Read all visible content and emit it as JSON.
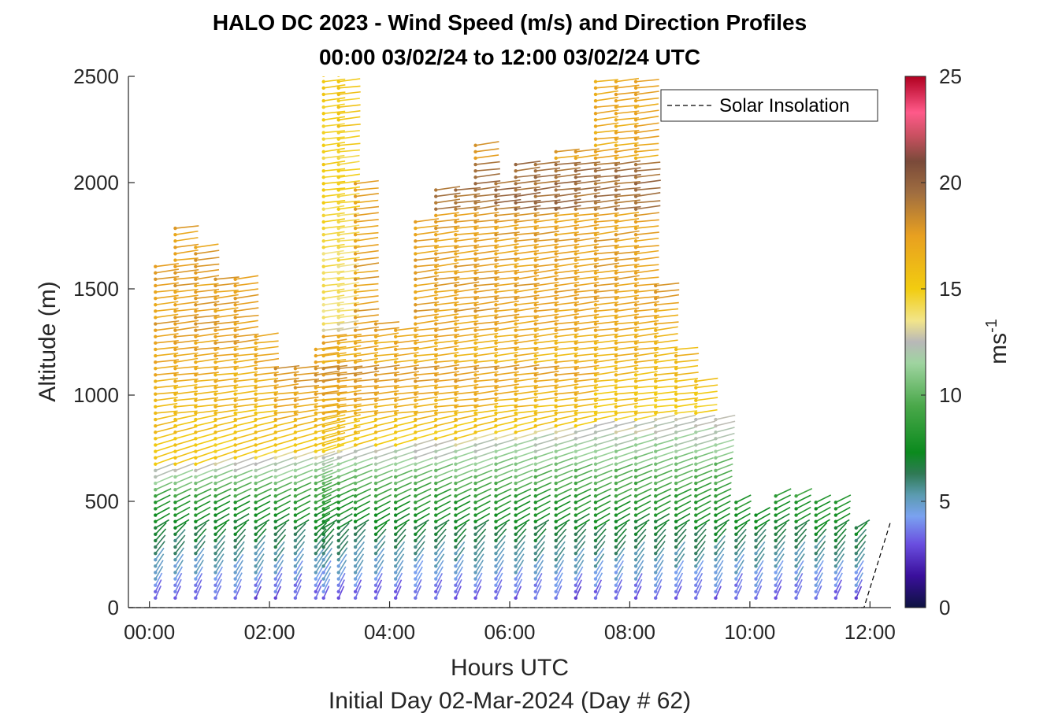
{
  "chart_data": {
    "type": "wind-barb-profile",
    "title_line1": "HALO DC 2023 - Wind Speed (m/s) and Direction Profiles",
    "title_line2": "00:00 03/02/24 to 12:00 03/02/24  UTC",
    "xlabel": "Hours UTC",
    "xlabel_secondary": "Initial Day 02-Mar-2024 (Day # 62)",
    "ylabel": "Altitude (m)",
    "xlim": [
      -0.35,
      12.35
    ],
    "ylim": [
      0,
      2500
    ],
    "xticks": [
      {
        "value": 0,
        "label": "00:00"
      },
      {
        "value": 2,
        "label": "02:00"
      },
      {
        "value": 4,
        "label": "04:00"
      },
      {
        "value": 6,
        "label": "06:00"
      },
      {
        "value": 8,
        "label": "08:00"
      },
      {
        "value": 10,
        "label": "10:00"
      },
      {
        "value": 12,
        "label": "12:00"
      }
    ],
    "yticks": [
      {
        "value": 0,
        "label": "0"
      },
      {
        "value": 500,
        "label": "500"
      },
      {
        "value": 1000,
        "label": "1000"
      },
      {
        "value": 1500,
        "label": "1500"
      },
      {
        "value": 2000,
        "label": "2000"
      },
      {
        "value": 2500,
        "label": "2500"
      }
    ],
    "colorbar": {
      "label": "ms",
      "label_superscript": "-1",
      "range": [
        0,
        25
      ],
      "ticks": [
        {
          "value": 0,
          "label": "0"
        },
        {
          "value": 5,
          "label": "5"
        },
        {
          "value": 10,
          "label": "10"
        },
        {
          "value": 15,
          "label": "15"
        },
        {
          "value": 20,
          "label": "20"
        },
        {
          "value": 25,
          "label": "25"
        }
      ],
      "stops": [
        {
          "v": 0,
          "c": "#0d1240"
        },
        {
          "v": 1.5,
          "c": "#3a0f9c"
        },
        {
          "v": 3,
          "c": "#6a4fe0"
        },
        {
          "v": 4.3,
          "c": "#7aa2f0"
        },
        {
          "v": 5.3,
          "c": "#5b9bb0"
        },
        {
          "v": 6.3,
          "c": "#2f7a55"
        },
        {
          "v": 7.3,
          "c": "#0b8a1e"
        },
        {
          "v": 9.5,
          "c": "#4aa84a"
        },
        {
          "v": 11.5,
          "c": "#9fd4a0"
        },
        {
          "v": 12.5,
          "c": "#b8b8b8"
        },
        {
          "v": 13.5,
          "c": "#f2e58a"
        },
        {
          "v": 15,
          "c": "#f2cc10"
        },
        {
          "v": 17.5,
          "c": "#e8a020"
        },
        {
          "v": 19.5,
          "c": "#a06e40"
        },
        {
          "v": 21,
          "c": "#7a4a3a"
        },
        {
          "v": 22.2,
          "c": "#c85060"
        },
        {
          "v": 23.3,
          "c": "#ff5a8a"
        },
        {
          "v": 25,
          "c": "#b00020"
        }
      ]
    },
    "legend": {
      "label": "Solar Insolation",
      "placement": "top-right",
      "style": "dashed-line"
    },
    "solar_insolation": {
      "x": [
        -0.35,
        11.9,
        12.35
      ],
      "y": [
        0,
        0,
        410
      ]
    },
    "range_gate_m": 30,
    "min_altitude_m": 45,
    "profiles": [
      {
        "t": 0.1,
        "top": 1620
      },
      {
        "t": 0.43,
        "top": 1790
      },
      {
        "t": 0.77,
        "top": 1700
      },
      {
        "t": 1.1,
        "top": 1550
      },
      {
        "t": 1.43,
        "top": 1550
      },
      {
        "t": 1.77,
        "top": 1280
      },
      {
        "t": 2.1,
        "top": 1150
      },
      {
        "t": 2.43,
        "top": 1130
      },
      {
        "t": 2.77,
        "top": 1230
      },
      {
        "t": 2.9,
        "top": 2520
      },
      {
        "t": 3.15,
        "top": 2520
      },
      {
        "t": 3.43,
        "top": 2000
      },
      {
        "t": 3.77,
        "top": 1340
      },
      {
        "t": 4.1,
        "top": 1320
      },
      {
        "t": 4.43,
        "top": 1840
      },
      {
        "t": 4.77,
        "top": 1980
      },
      {
        "t": 5.1,
        "top": 1980
      },
      {
        "t": 5.43,
        "top": 2180
      },
      {
        "t": 5.77,
        "top": 2000
      },
      {
        "t": 6.1,
        "top": 2090
      },
      {
        "t": 6.43,
        "top": 2090
      },
      {
        "t": 6.77,
        "top": 2150
      },
      {
        "t": 7.1,
        "top": 2150
      },
      {
        "t": 7.43,
        "top": 2500
      },
      {
        "t": 7.77,
        "top": 2500
      },
      {
        "t": 8.1,
        "top": 2500
      },
      {
        "t": 8.43,
        "top": 1520
      },
      {
        "t": 8.77,
        "top": 1220
      },
      {
        "t": 9.1,
        "top": 1080
      },
      {
        "t": 9.43,
        "top": 900
      },
      {
        "t": 9.77,
        "top": 520
      },
      {
        "t": 10.1,
        "top": 450
      },
      {
        "t": 10.43,
        "top": 540
      },
      {
        "t": 10.77,
        "top": 540
      },
      {
        "t": 11.1,
        "top": 520
      },
      {
        "t": 11.43,
        "top": 500
      },
      {
        "t": 11.77,
        "top": 400
      }
    ]
  }
}
